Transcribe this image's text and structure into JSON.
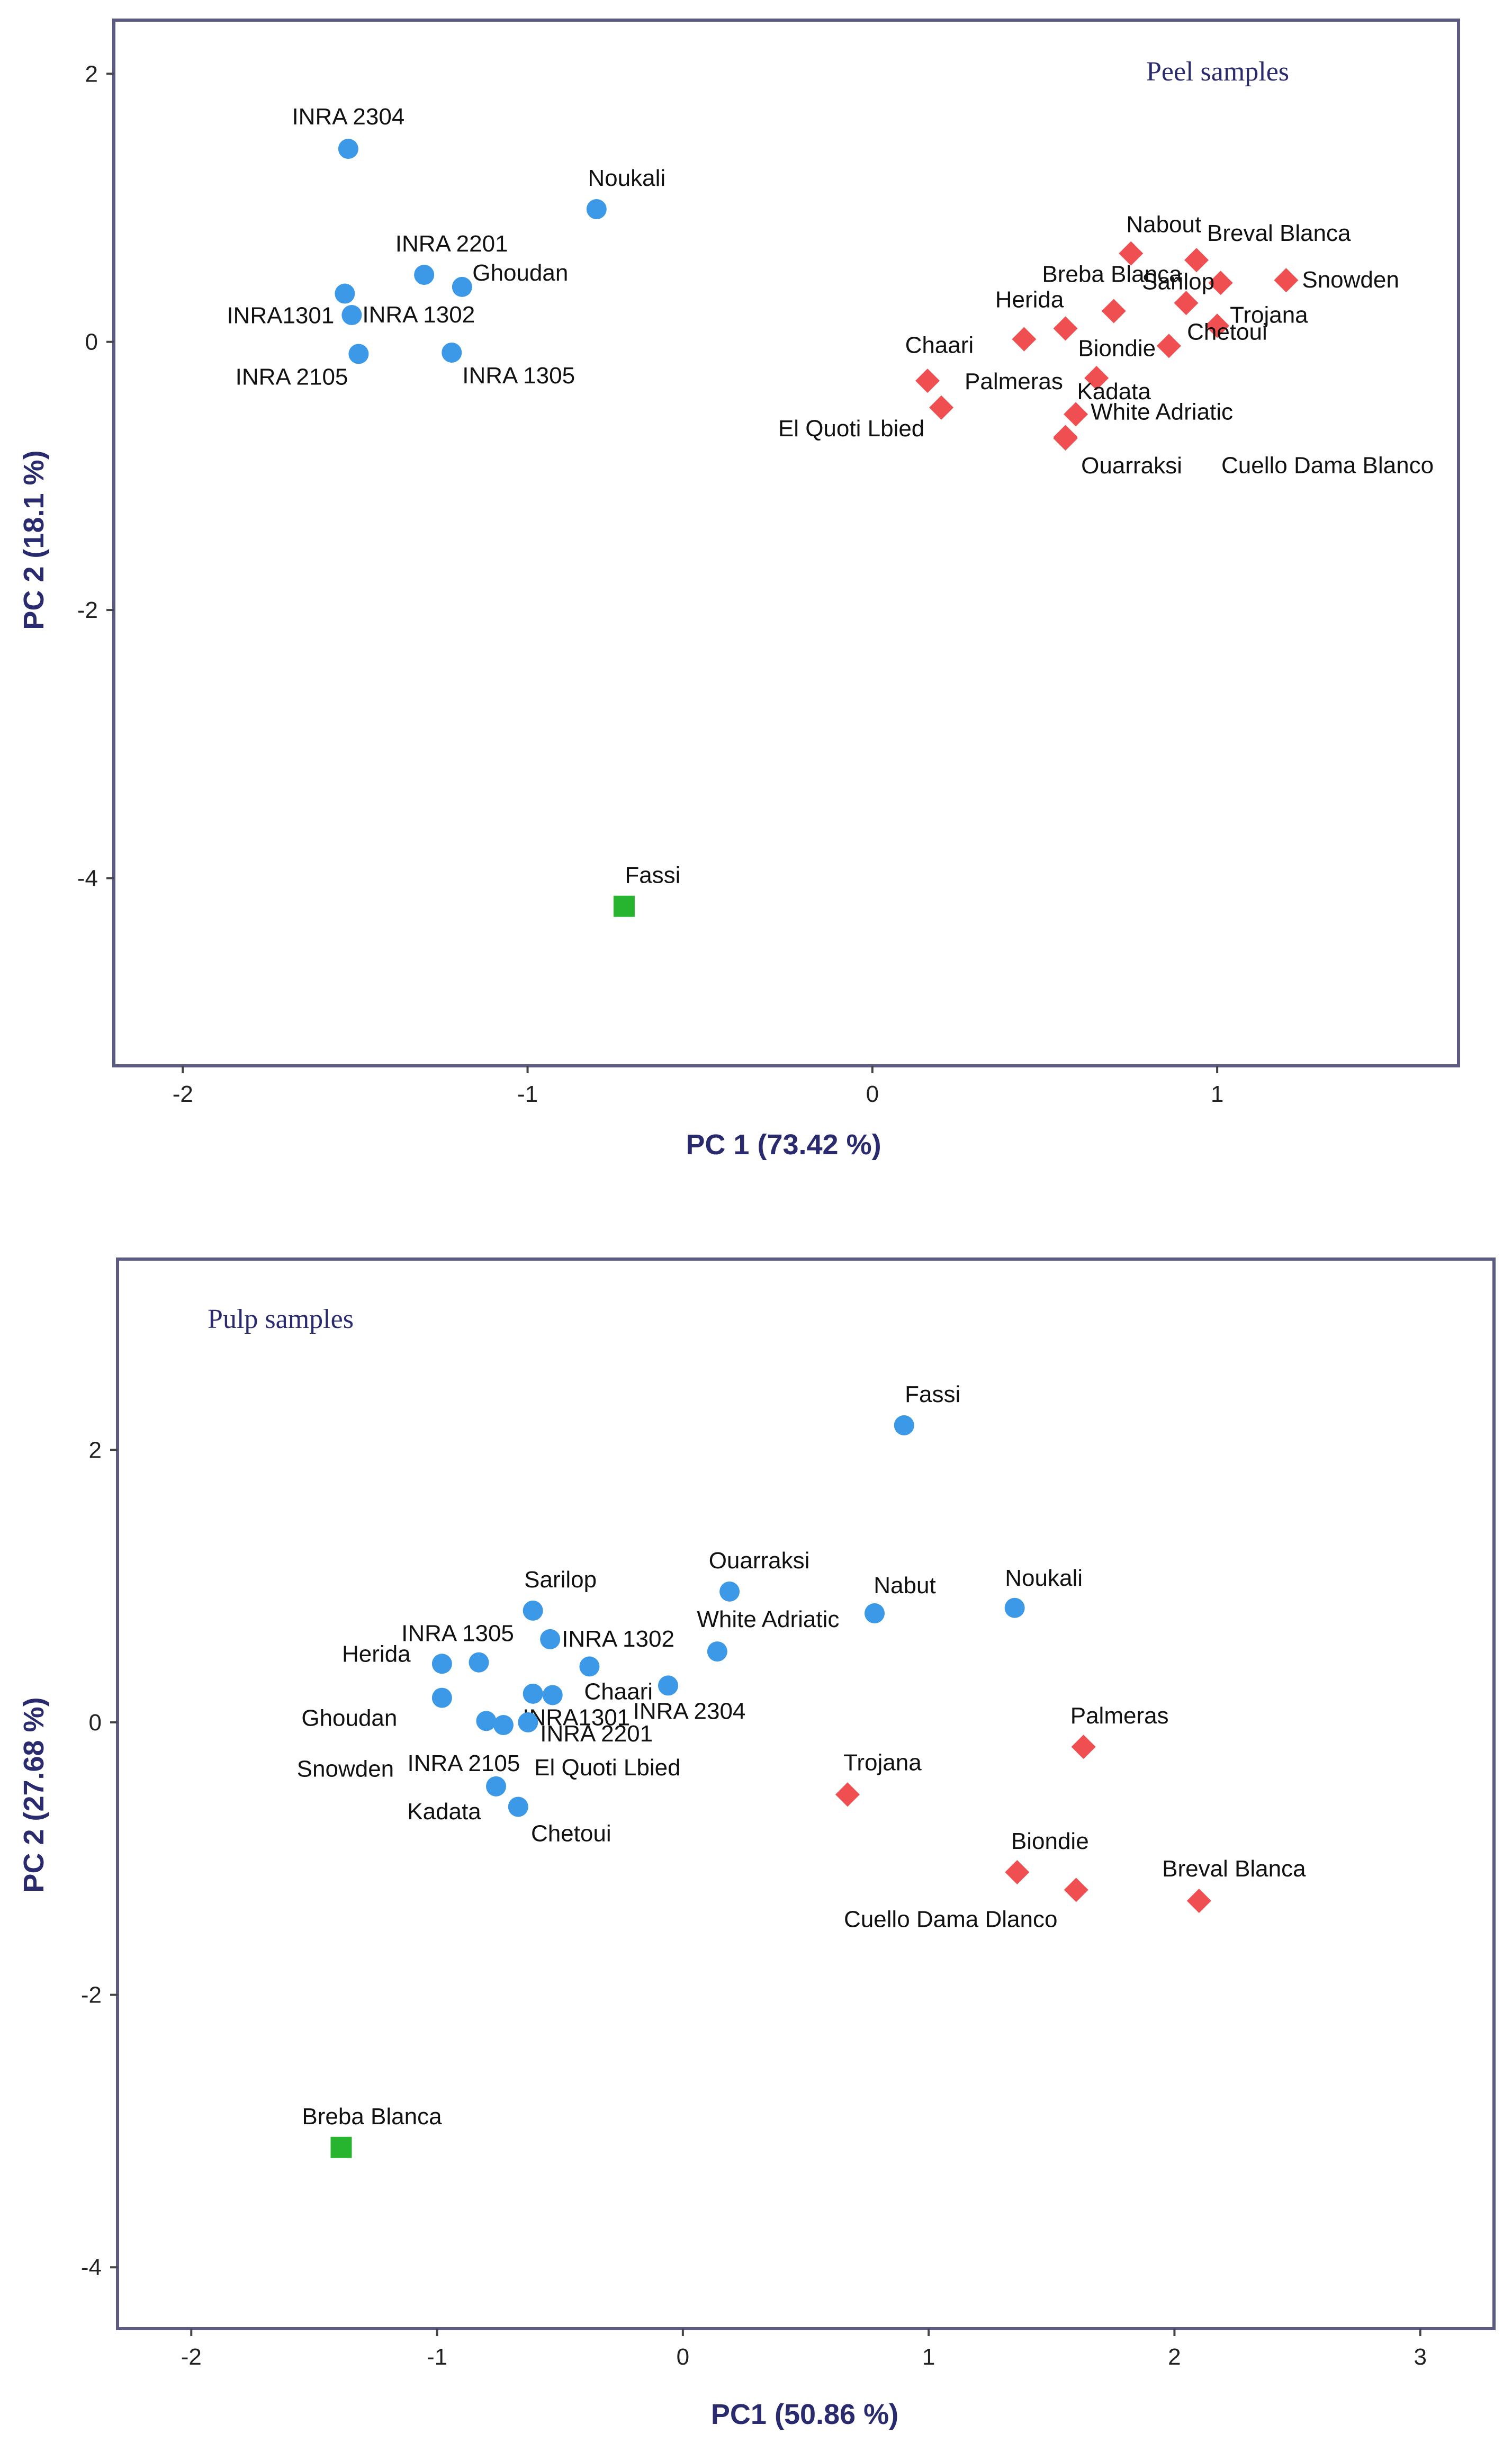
{
  "colors": {
    "group_blue": "#3b99e8",
    "group_red": "#ef4f50",
    "group_green": "#27b42f"
  },
  "chart_data": [
    {
      "type": "scatter",
      "title": "Peel samples",
      "xlabel": "PC 1 (73.42 %)",
      "ylabel": "PC 2 (18.1 %)",
      "xlim": [
        -2.2,
        1.7
      ],
      "ylim": [
        -5.4,
        2.4
      ],
      "xticks": [
        -2,
        -1,
        0,
        1
      ],
      "yticks": [
        2,
        0,
        -2,
        -4
      ],
      "points": [
        {
          "label": "INRA 2304",
          "x": -1.52,
          "y": 1.44,
          "group": "blue"
        },
        {
          "label": "Noukali",
          "x": -0.8,
          "y": 0.99,
          "group": "blue"
        },
        {
          "label": "INRA 2201",
          "x": -1.3,
          "y": 0.5,
          "group": "blue"
        },
        {
          "label": "Ghoudan",
          "x": -1.19,
          "y": 0.41,
          "group": "blue"
        },
        {
          "label": "INRA1301",
          "x": -1.53,
          "y": 0.36,
          "group": "blue"
        },
        {
          "label": "INRA 1302",
          "x": -1.51,
          "y": 0.2,
          "group": "blue"
        },
        {
          "label": "INRA 2105",
          "x": -1.49,
          "y": -0.09,
          "group": "blue"
        },
        {
          "label": "INRA 1305",
          "x": -1.22,
          "y": -0.08,
          "group": "blue"
        },
        {
          "label": "Nabout",
          "x": 0.75,
          "y": 0.66,
          "group": "red"
        },
        {
          "label": "Breval Blanca",
          "x": 0.94,
          "y": 0.61,
          "group": "red"
        },
        {
          "label": "Snowden",
          "x": 1.2,
          "y": 0.46,
          "group": "red"
        },
        {
          "label": "Sarilop",
          "x": 1.01,
          "y": 0.44,
          "group": "red"
        },
        {
          "label": "Breba Blanca",
          "x": 0.91,
          "y": 0.29,
          "group": "red"
        },
        {
          "label": "Biondie",
          "x": 0.7,
          "y": 0.23,
          "group": "red"
        },
        {
          "label": "Trojana",
          "x": 1.0,
          "y": 0.12,
          "group": "red"
        },
        {
          "label": "Herida",
          "x": 0.56,
          "y": 0.1,
          "group": "red"
        },
        {
          "label": "Chaari",
          "x": 0.44,
          "y": 0.02,
          "group": "red"
        },
        {
          "label": "Chetoui",
          "x": 0.86,
          "y": -0.03,
          "group": "red"
        },
        {
          "label": "Kadata",
          "x": 0.65,
          "y": -0.27,
          "group": "red"
        },
        {
          "label": "Palmeras",
          "x": 0.16,
          "y": -0.29,
          "group": "red"
        },
        {
          "label": "El Quoti Lbied",
          "x": 0.2,
          "y": -0.49,
          "group": "red"
        },
        {
          "label": "White Adriatic",
          "x": 0.59,
          "y": -0.54,
          "group": "red"
        },
        {
          "label": "Cuello Dama Blanco",
          "x": 0.56,
          "y": -0.71,
          "group": "red"
        },
        {
          "label": "Ouarraksi",
          "x": 0.56,
          "y": -0.72,
          "group": "red"
        },
        {
          "label": "Fassi",
          "x": -0.72,
          "y": -4.21,
          "group": "green"
        }
      ]
    },
    {
      "type": "scatter",
      "title": "Pulp samples",
      "xlabel": "PC1 (50.86 %)",
      "ylabel": "PC 2 (27.68 %)",
      "xlim": [
        -2.3,
        3.3
      ],
      "ylim": [
        -4.45,
        3.4
      ],
      "xticks": [
        -2,
        -1,
        0,
        1,
        2,
        3
      ],
      "yticks": [
        2,
        0,
        -2,
        -4
      ],
      "points": [
        {
          "label": "Fassi",
          "x": 0.9,
          "y": 2.18,
          "group": "blue"
        },
        {
          "label": "Ouarraksi",
          "x": 0.19,
          "y": 0.96,
          "group": "blue"
        },
        {
          "label": "Noukali",
          "x": 1.35,
          "y": 0.84,
          "group": "blue"
        },
        {
          "label": "Sarilop",
          "x": -0.61,
          "y": 0.82,
          "group": "blue"
        },
        {
          "label": "Nabut",
          "x": 0.78,
          "y": 0.8,
          "group": "blue"
        },
        {
          "label": "INRA 1302",
          "x": -0.54,
          "y": 0.61,
          "group": "blue"
        },
        {
          "label": "White Adriatic",
          "x": 0.14,
          "y": 0.52,
          "group": "blue"
        },
        {
          "label": "INRA 1305",
          "x": -0.83,
          "y": 0.44,
          "group": "blue"
        },
        {
          "label": "Chaari",
          "x": -0.38,
          "y": 0.41,
          "group": "blue"
        },
        {
          "label": "Herida",
          "x": -0.98,
          "y": 0.43,
          "group": "blue"
        },
        {
          "label": "INRA 2304",
          "x": -0.06,
          "y": 0.27,
          "group": "blue"
        },
        {
          "label": "INRA1301",
          "x": -0.53,
          "y": 0.2,
          "group": "blue"
        },
        {
          "label": "INRA 2201",
          "x": -0.61,
          "y": 0.21,
          "group": "blue"
        },
        {
          "label": "Ghoudan",
          "x": -0.98,
          "y": 0.18,
          "group": "blue"
        },
        {
          "label": "Snowden",
          "x": -0.8,
          "y": 0.01,
          "group": "blue"
        },
        {
          "label": "INRA 2105",
          "x": -0.73,
          "y": -0.02,
          "group": "blue"
        },
        {
          "label": "El Quoti Lbied",
          "x": -0.63,
          "y": 0.0,
          "group": "blue"
        },
        {
          "label": "Kadata",
          "x": -0.76,
          "y": -0.47,
          "group": "blue"
        },
        {
          "label": "Chetoui",
          "x": -0.67,
          "y": -0.62,
          "group": "blue"
        },
        {
          "label": "Palmeras",
          "x": 1.63,
          "y": -0.18,
          "group": "red"
        },
        {
          "label": "Trojana",
          "x": 0.67,
          "y": -0.53,
          "group": "red"
        },
        {
          "label": "Biondie",
          "x": 1.36,
          "y": -1.1,
          "group": "red"
        },
        {
          "label": "Cuello Dama Dlanco",
          "x": 1.6,
          "y": -1.23,
          "group": "red"
        },
        {
          "label": "Breval Blanca",
          "x": 2.1,
          "y": -1.31,
          "group": "red"
        },
        {
          "label": "Breba Blanca",
          "x": -1.39,
          "y": -3.12,
          "group": "green"
        }
      ]
    }
  ]
}
